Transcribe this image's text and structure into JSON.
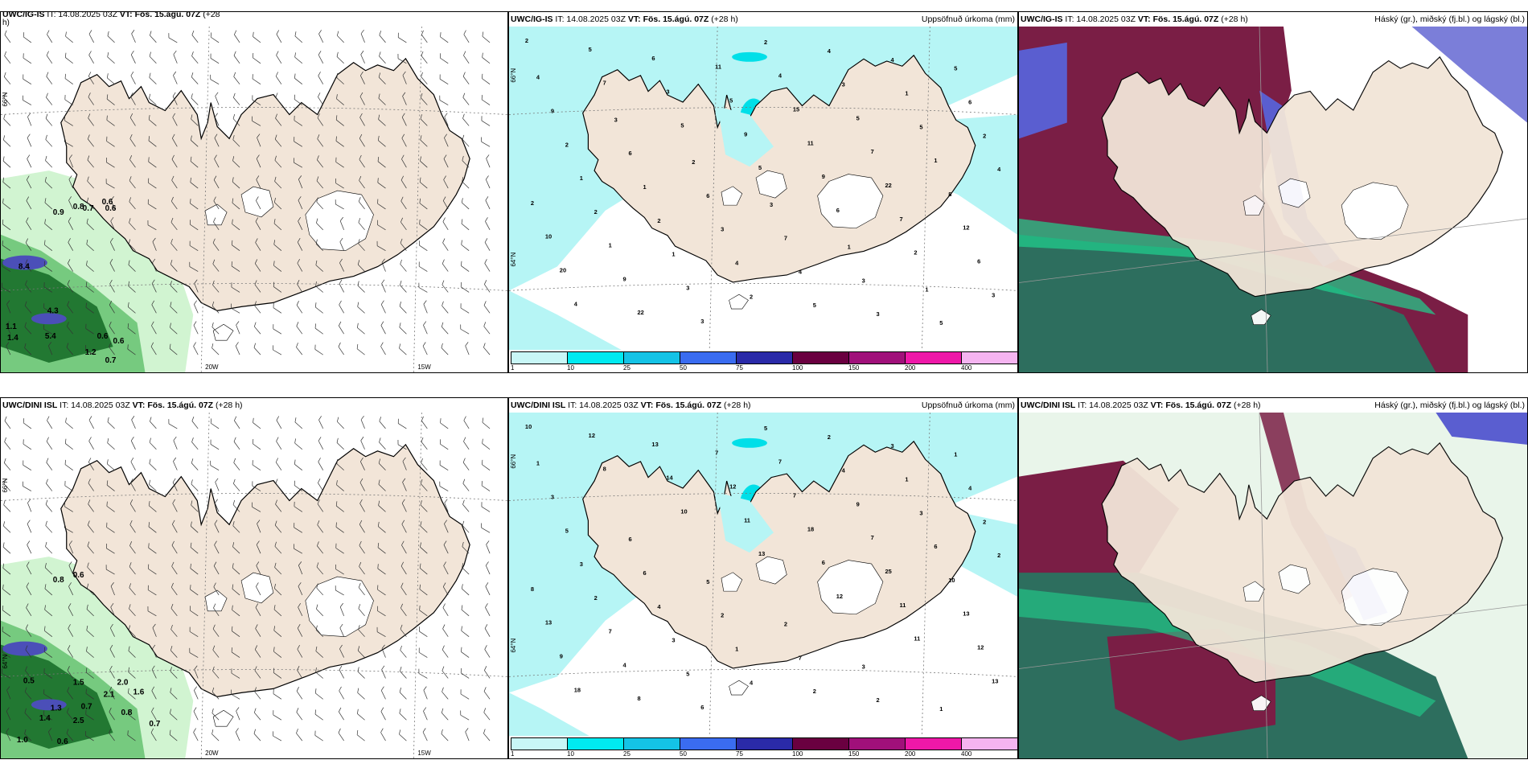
{
  "panels": {
    "wind_top": {
      "model": "UWC/IG-IS",
      "it": "IT: 14.08.2025 03Z",
      "vt": "VT: Fös. 15.ágú. 07Z",
      "lead": "(+28",
      "lead2": "h)",
      "title": "",
      "lat_label": "66°N",
      "lon_labels": [
        "20W",
        "15W"
      ],
      "values": [
        "0.9",
        "0.8",
        "0.7",
        "0.6",
        "0.6",
        "8.4",
        "4.3",
        "5.4",
        "1.1",
        "1.4",
        "0.6",
        "0.6",
        "1.2",
        "0.7"
      ]
    },
    "precip_top": {
      "model": "UWC/IG-IS",
      "it": "IT: 14.08.2025 03Z",
      "vt": "VT: Fös. 15.ágú. 07Z",
      "lead": "(+28 h)",
      "title": "Uppsöfnuð úrkoma (mm)",
      "lat_labels": [
        "66°N",
        "64°N"
      ]
    },
    "cloud_top": {
      "model": "UWC/IG-IS",
      "it": "IT: 14.08.2025 03Z",
      "vt": "VT: Fös. 15.ágú. 07Z",
      "lead": "(+28 h)",
      "title": "Háský (gr.), miðský (fj.bl.) og lágský (bl.)"
    },
    "wind_bottom": {
      "model": "UWC/DINI ISL",
      "it": "IT: 14.08.2025 03Z",
      "vt": "VT: Fös. 15.ágú. 07Z",
      "lead": "(+28 h)",
      "title": "",
      "lat_labels": [
        "66°N",
        "64°N"
      ],
      "lon_labels": [
        "20W",
        "15W"
      ],
      "values": [
        "0.8",
        "0.6",
        "0.5",
        "1.5",
        "2.0",
        "1.6",
        "2.1",
        "0.7",
        "1.3",
        "0.8",
        "1.4",
        "2.5",
        "0.7",
        "1.0",
        "0.6"
      ]
    },
    "precip_bottom": {
      "model": "UWC/DINI ISL",
      "it": "IT: 14.08.2025 03Z",
      "vt": "VT: Fös. 15.ágú. 07Z",
      "lead": "(+28 h)",
      "title": "Uppsöfnuð úrkoma (mm)",
      "lat_labels": [
        "66°N",
        "64°N"
      ]
    },
    "cloud_bottom": {
      "model": "UWC/DINI ISL",
      "it": "IT: 14.08.2025 03Z",
      "vt": "VT: Fös. 15.ágú. 07Z",
      "lead": "(+28 h)",
      "title": "Háský (gr.), miðský (fj.bl.) og lágský (bl.)"
    }
  },
  "precip_top_numbers": [
    "2",
    "7",
    "5",
    "5",
    "6",
    "2",
    "3",
    "5",
    "3",
    "9",
    "9",
    "7",
    "6",
    "4",
    "6",
    "5",
    "11",
    "22",
    "12",
    "20",
    "22",
    "11",
    "15",
    "7",
    "8",
    "10",
    "9",
    "3",
    "4",
    "5",
    "1",
    "2",
    "1",
    "3",
    "2",
    "3",
    "5",
    "4",
    "2",
    "1",
    "2",
    "4",
    "1",
    "2",
    "1",
    "2",
    "4",
    "5",
    "4",
    "6",
    "2",
    "1",
    "3",
    "4",
    "3",
    "5",
    "9",
    "6",
    "6",
    "7",
    "3",
    "5",
    "4",
    "3",
    "2",
    "3",
    "1",
    "1"
  ],
  "precip_bottom_numbers": [
    "10",
    "8",
    "10",
    "13",
    "12",
    "11",
    "13",
    "12",
    "14",
    "11",
    "6",
    "11",
    "12",
    "18",
    "13",
    "12",
    "18",
    "25",
    "13",
    "9",
    "8",
    "7",
    "7",
    "7",
    "10",
    "13",
    "4",
    "6",
    "7",
    "9",
    "6",
    "8",
    "7",
    "5",
    "5",
    "4",
    "3",
    "2",
    "2",
    "3",
    "4",
    "2",
    "1",
    "2",
    "3",
    "4",
    "1",
    "2",
    "3",
    "4",
    "5",
    "6",
    "2",
    "7",
    "2",
    "1",
    "3",
    "6",
    "5",
    "2",
    "3",
    "1",
    "1"
  ],
  "colorbar": {
    "ticks": [
      "1",
      "10",
      "25",
      "50",
      "75",
      "100",
      "150",
      "200",
      "400"
    ],
    "colors": [
      "#c8f7f7",
      "#00eaf0",
      "#14c3e6",
      "#3a6cf0",
      "#2a2aa8",
      "#6a0040",
      "#a0107a",
      "#ee18a8",
      "#f5b4f0"
    ]
  },
  "colors": {
    "land": "#f2e5d8",
    "sea": "#ffffff",
    "precip_light": "#b6f5f5",
    "wind_green_light": "#c9f2c9",
    "wind_green_dark": "#1a6f2a",
    "cloud_high": "#7a1e45",
    "cloud_mid": "#5a5ed0",
    "cloud_low": "#2d6e5e"
  }
}
